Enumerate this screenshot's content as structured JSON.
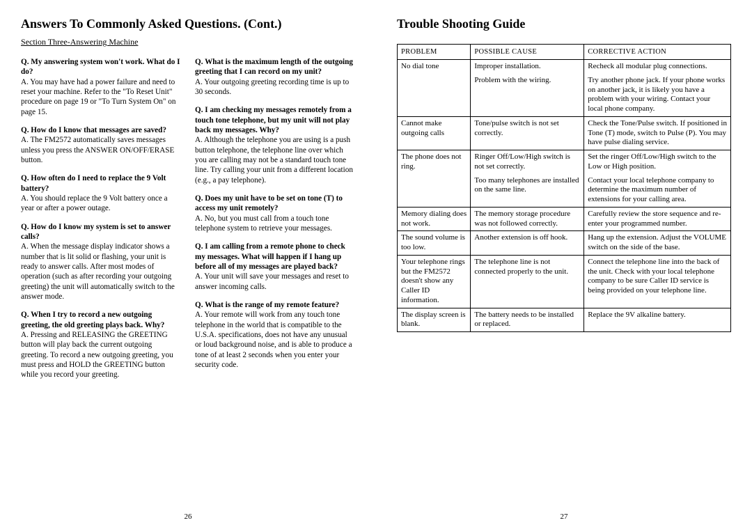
{
  "left": {
    "title": "Answers To Commonly Asked Questions. (Cont.)",
    "section": "Section Three-Answering Machine",
    "col1": [
      {
        "q": "Q. My answering system won't work. What do I do?",
        "a": "A. You may have had a power failure and need to reset your machine. Refer to the \"To Reset Unit\" procedure on page 19 or \"To Turn System On\" on page 15."
      },
      {
        "q": "Q. How do I know that messages are saved?",
        "a": "A. The FM2572 automatically saves messages unless you press the ANSWER ON/OFF/ERASE button."
      },
      {
        "q": "Q. How often do I need to replace the 9 Volt battery?",
        "a": "A. You should replace the 9 Volt battery once a year or after a power outage."
      },
      {
        "q": "Q. How do I know my system is set to answer calls?",
        "a": "A. When the message display indicator shows a number that is lit solid or flashing, your unit is ready to answer calls. After most modes of operation (such as after recording your outgoing greeting) the unit will automatically switch to the answer mode."
      },
      {
        "q": "Q. When I try to record a new outgoing greeting, the old greeting plays back. Why?",
        "a": "A. Pressing and RELEASING the GREETING button will play back the current outgoing greeting.\nTo record a new outgoing greeting, you must press and HOLD the GREETING button while you record your greeting."
      }
    ],
    "col2": [
      {
        "q": "Q. What is the maximum length of the outgoing greeting that I can record on my unit?",
        "a": "A. Your outgoing greeting recording time is up to 30 seconds."
      },
      {
        "q": "Q. I am checking my messages remotely from a touch tone telephone, but my unit will not play back my messages. Why?",
        "a": "A. Although the telephone you are using is a push button telephone, the telephone line over which you are calling may not be a standard touch tone line. Try calling your unit from a different location (e.g., a pay telephone)."
      },
      {
        "q": "Q. Does my unit have to be set on tone (T) to access my unit remotely?",
        "a": "A. No, but you must call from a touch tone telephone system to retrieve your messages."
      },
      {
        "q": "Q. I am calling from a remote phone to check my messages. What will happen if I hang up before all of my messages are played back?",
        "a": "A. Your unit will save your messages and reset to answer incoming calls."
      },
      {
        "q": "Q. What is the range of my remote feature?",
        "a": "A. Your remote will work from any touch tone telephone in the world that is compatible to the U.S.A. specifications, does not have any unusual or loud background noise, and is able to produce a tone of at least 2 seconds when you enter your security code."
      }
    ],
    "page_num": "26"
  },
  "right": {
    "title": "Trouble Shooting Guide",
    "headers": {
      "p": "PROBLEM",
      "c": "POSSIBLE CAUSE",
      "a": "CORRECTIVE ACTION"
    },
    "rows": [
      {
        "sep": true,
        "p": "No dial tone",
        "c": "Improper installation.",
        "a": "Recheck all modular plug connections."
      },
      {
        "sep": false,
        "p": "",
        "c": "Problem with the wiring.",
        "a": "Try another phone jack. If your phone works on another jack, it is likely you have a problem with your wiring. Contact your local phone company."
      },
      {
        "sep": true,
        "p": "Cannot make outgoing calls",
        "c": "Tone/pulse switch is not set correctly.",
        "a": "Check the Tone/Pulse switch. If positioned in Tone (T) mode, switch to Pulse (P). You may have pulse dialing service."
      },
      {
        "sep": true,
        "p": "The phone does not ring.",
        "c": "Ringer Off/Low/High switch is not set correctly.",
        "a": "Set the ringer Off/Low/High switch to the Low or High position."
      },
      {
        "sep": false,
        "p": "",
        "c": "Too many telephones are installed on the same line.",
        "a": "Contact your local telephone company to determine the maximum number of extensions for your calling area."
      },
      {
        "sep": true,
        "p": "Memory dialing does not work.",
        "c": "The memory storage procedure was not followed correctly.",
        "a": "Carefully review the store sequence and re-enter your programmed number."
      },
      {
        "sep": true,
        "p": "The sound volume is too low.",
        "c": "Another extension is off hook.",
        "a": "Hang up the extension. Adjust the VOLUME switch on the side of the base."
      },
      {
        "sep": true,
        "p": "Your telephone rings but the FM2572 doesn't show any Caller ID information.",
        "c": "The telephone line is not connected properly to the unit.",
        "a": "Connect the telephone line into the back of the unit. Check with your local telephone company to be sure Caller ID service is being provided on your telephone line."
      },
      {
        "sep": true,
        "last": true,
        "p": "The display screen is blank.",
        "c": "The battery needs to be installed or replaced.",
        "a": "Replace the 9V alkaline battery."
      }
    ],
    "page_num": "27"
  }
}
